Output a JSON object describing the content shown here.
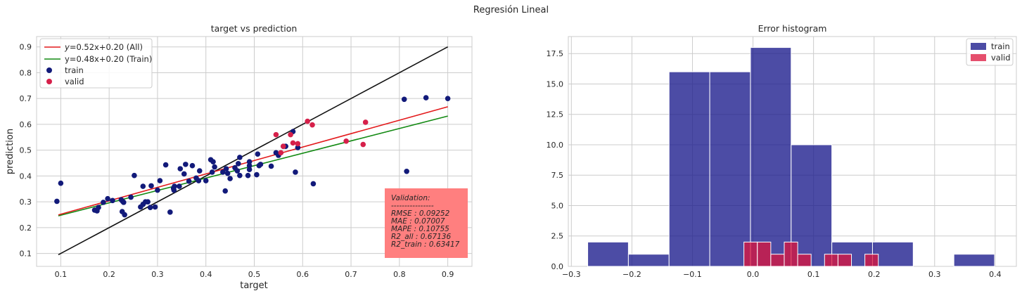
{
  "suptitle": "Regresión Lineal",
  "chart_data": [
    {
      "type": "scatter",
      "title": "target vs prediction",
      "xlabel": "target",
      "ylabel": "prediction",
      "xlim": [
        0.05,
        0.95
      ],
      "ylim": [
        0.05,
        0.94
      ],
      "xticks": [
        "0.1",
        "0.2",
        "0.3",
        "0.4",
        "0.5",
        "0.6",
        "0.7",
        "0.8",
        "0.9"
      ],
      "yticks": [
        "0.1",
        "0.2",
        "0.3",
        "0.4",
        "0.5",
        "0.6",
        "0.7",
        "0.8",
        "0.9"
      ],
      "grid": true,
      "legend_position": "top-left",
      "lines": [
        {
          "name": "$y$=0.52x+0.20 (All)",
          "label_prefix": "y",
          "label_suffix": "=0.52x+0.20 (All)",
          "slope": 0.52,
          "intercept": 0.2,
          "x": [
            0.095,
            0.9
          ],
          "color": "#e31a1c"
        },
        {
          "name": "y=0.48x+0.20 (Train)",
          "label_prefix": "",
          "label_suffix": "y=0.48x+0.20 (Train)",
          "slope": 0.48,
          "intercept": 0.2,
          "x": [
            0.095,
            0.9
          ],
          "color": "#138a13"
        },
        {
          "name": "identity",
          "slope": 1.0,
          "intercept": 0.0,
          "x": [
            0.095,
            0.9
          ],
          "color": "#111111"
        }
      ],
      "series": [
        {
          "name": "train",
          "color": "#121a7a",
          "points": [
            [
              0.092,
              0.302
            ],
            [
              0.1,
              0.372
            ],
            [
              0.17,
              0.268
            ],
            [
              0.175,
              0.265
            ],
            [
              0.178,
              0.278
            ],
            [
              0.188,
              0.298
            ],
            [
              0.197,
              0.312
            ],
            [
              0.207,
              0.305
            ],
            [
              0.225,
              0.308
            ],
            [
              0.227,
              0.262
            ],
            [
              0.228,
              0.302
            ],
            [
              0.23,
              0.298
            ],
            [
              0.232,
              0.25
            ],
            [
              0.245,
              0.318
            ],
            [
              0.252,
              0.402
            ],
            [
              0.265,
              0.28
            ],
            [
              0.27,
              0.36
            ],
            [
              0.27,
              0.29
            ],
            [
              0.275,
              0.3
            ],
            [
              0.28,
              0.3
            ],
            [
              0.285,
              0.278
            ],
            [
              0.287,
              0.362
            ],
            [
              0.295,
              0.28
            ],
            [
              0.3,
              0.345
            ],
            [
              0.305,
              0.382
            ],
            [
              0.317,
              0.443
            ],
            [
              0.326,
              0.26
            ],
            [
              0.333,
              0.352
            ],
            [
              0.334,
              0.345
            ],
            [
              0.335,
              0.36
            ],
            [
              0.345,
              0.36
            ],
            [
              0.347,
              0.428
            ],
            [
              0.355,
              0.408
            ],
            [
              0.358,
              0.445
            ],
            [
              0.365,
              0.38
            ],
            [
              0.372,
              0.44
            ],
            [
              0.38,
              0.392
            ],
            [
              0.385,
              0.382
            ],
            [
              0.387,
              0.42
            ],
            [
              0.4,
              0.382
            ],
            [
              0.41,
              0.463
            ],
            [
              0.413,
              0.415
            ],
            [
              0.415,
              0.455
            ],
            [
              0.418,
              0.435
            ],
            [
              0.435,
              0.415
            ],
            [
              0.44,
              0.342
            ],
            [
              0.442,
              0.428
            ],
            [
              0.445,
              0.41
            ],
            [
              0.45,
              0.39
            ],
            [
              0.46,
              0.432
            ],
            [
              0.465,
              0.42
            ],
            [
              0.467,
              0.448
            ],
            [
              0.47,
              0.402
            ],
            [
              0.47,
              0.472
            ],
            [
              0.487,
              0.402
            ],
            [
              0.49,
              0.44
            ],
            [
              0.49,
              0.455
            ],
            [
              0.49,
              0.425
            ],
            [
              0.505,
              0.405
            ],
            [
              0.507,
              0.485
            ],
            [
              0.51,
              0.44
            ],
            [
              0.513,
              0.445
            ],
            [
              0.535,
              0.438
            ],
            [
              0.545,
              0.49
            ],
            [
              0.55,
              0.48
            ],
            [
              0.56,
              0.515
            ],
            [
              0.565,
              0.515
            ],
            [
              0.58,
              0.572
            ],
            [
              0.585,
              0.415
            ],
            [
              0.59,
              0.51
            ],
            [
              0.622,
              0.37
            ],
            [
              0.81,
              0.697
            ],
            [
              0.815,
              0.418
            ],
            [
              0.855,
              0.703
            ],
            [
              0.9,
              0.7
            ]
          ]
        },
        {
          "name": "valid",
          "color": "#d6204a",
          "points": [
            [
              0.545,
              0.56
            ],
            [
              0.555,
              0.49
            ],
            [
              0.56,
              0.515
            ],
            [
              0.575,
              0.56
            ],
            [
              0.58,
              0.528
            ],
            [
              0.59,
              0.525
            ],
            [
              0.61,
              0.612
            ],
            [
              0.62,
              0.598
            ],
            [
              0.69,
              0.535
            ],
            [
              0.725,
              0.522
            ],
            [
              0.73,
              0.608
            ]
          ]
        }
      ],
      "annotation_lines": [
        "Validation:",
        "----------------",
        "RMSE       : 0.09252",
        "MAE         : 0.07007",
        "MAPE       : 0.10755",
        "R2_all       : 0.67136",
        "R2_train  : 0.63417"
      ],
      "annotation_color": "#ff7f7f",
      "annotation_position": "bottom-right"
    },
    {
      "type": "histogram",
      "title": "Error histogram",
      "xlim": [
        -0.305,
        0.435
      ],
      "ylim": [
        0,
        18.9
      ],
      "xticks": [
        "−0.3",
        "−0.2",
        "−0.1",
        "0.0",
        "0.1",
        "0.2",
        "0.3",
        "0.4"
      ],
      "yticks": [
        "0.0",
        "2.5",
        "5.0",
        "7.5",
        "10.0",
        "12.5",
        "15.0",
        "17.5"
      ],
      "grid": true,
      "legend_position": "top-right",
      "series": [
        {
          "name": "train",
          "color": "#1a1a8c",
          "bin_edges": [
            -0.273,
            -0.2058,
            -0.1386,
            -0.0714,
            -0.0042,
            0.063,
            0.1302,
            0.1974,
            0.2646,
            0.3318,
            0.399
          ],
          "counts": [
            2,
            1,
            16,
            16,
            18,
            10,
            2,
            2,
            0,
            1
          ]
        },
        {
          "name": "valid",
          "color": "#dc143c",
          "bin_edges": [
            -0.015,
            0.0072,
            0.0294,
            0.0516,
            0.0738,
            0.096,
            0.1182,
            0.1404,
            0.1626,
            0.1848,
            0.207
          ],
          "counts": [
            2,
            2,
            1,
            2,
            1,
            0,
            1,
            1,
            0,
            1
          ]
        }
      ]
    }
  ]
}
